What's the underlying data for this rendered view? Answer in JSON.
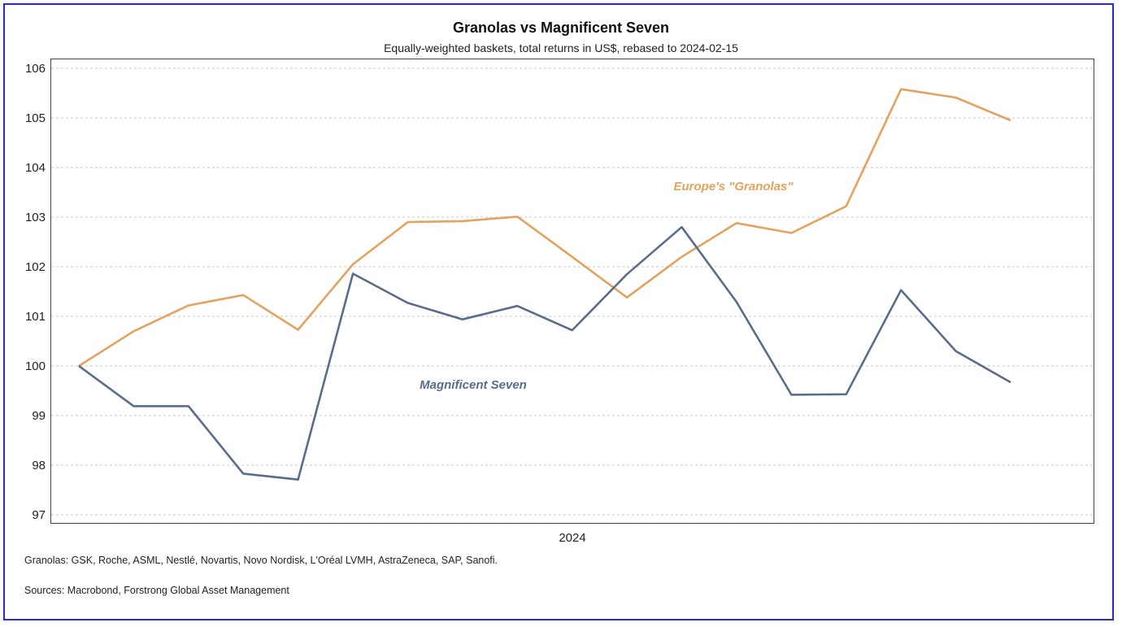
{
  "chart_data": {
    "type": "line",
    "title": "Granolas vs Magnificent Seven",
    "subtitle": "Equally-weighted baskets, total returns in US$, rebased to 2024-02-15",
    "x_tick_labels": [
      "2024"
    ],
    "ylim": [
      97,
      106
    ],
    "y_ticks": [
      97,
      98,
      99,
      100,
      101,
      102,
      103,
      104,
      105,
      106
    ],
    "grid": "horizontal dashed",
    "series": [
      {
        "name": "Europe's \"Granolas\"",
        "color": "#e3a35f",
        "values": [
          100.0,
          100.7,
          101.22,
          101.43,
          100.73,
          102.05,
          102.9,
          102.92,
          103.01,
          102.2,
          101.38,
          102.2,
          102.88,
          102.68,
          103.22,
          105.58,
          105.41,
          104.95
        ]
      },
      {
        "name": "Magnificent Seven",
        "color": "#5a6c8c",
        "values": [
          100.0,
          99.19,
          99.19,
          97.83,
          97.71,
          101.86,
          101.27,
          100.94,
          101.21,
          100.72,
          101.85,
          102.8,
          101.29,
          99.42,
          99.43,
          101.53,
          100.3,
          99.67
        ]
      }
    ]
  },
  "footnotes": {
    "granolas": "Granolas: GSK, Roche, ASML, Nestlé, Novartis, Novo Nordisk, L'Oréal LVMH, AstraZeneca, SAP, Sanofi.",
    "sources": "Sources: Macrobond, Forstrong Global Asset Management"
  }
}
